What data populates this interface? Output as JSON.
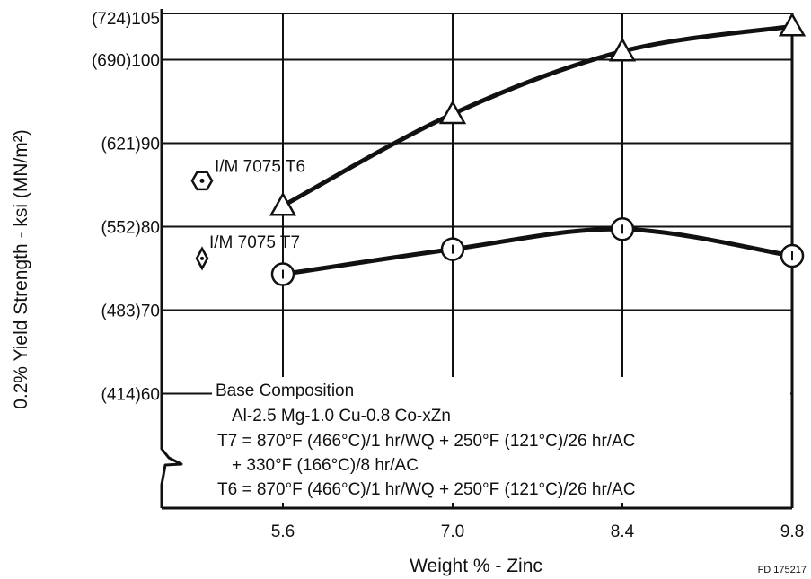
{
  "chart_data": {
    "type": "line",
    "title": "",
    "xlabel": "Weight % - Zinc",
    "ylabel": "0.2% Yield Strength - ksi (MN/m²)",
    "figure_id": "FD 175217",
    "x": [
      5.6,
      7.0,
      8.4,
      9.8
    ],
    "x_tick_labels": [
      "5.6",
      "7.0",
      "8.4",
      "9.8"
    ],
    "y_ticks": [
      60,
      70,
      80,
      90,
      100,
      105
    ],
    "y_tick_labels": [
      "(414)60",
      "(483)70",
      "(552)80",
      "(621)90",
      "(690)100",
      "(724)105"
    ],
    "ylim": [
      57,
      105
    ],
    "xlim": [
      4.6,
      9.8
    ],
    "grid": true,
    "axis_break_on_y": true,
    "series": [
      {
        "marker": "triangle",
        "values": [
          82.5,
          93.5,
          101.0,
          104.0
        ],
        "color": "#111111"
      },
      {
        "marker": "circle-dot",
        "values": [
          74.3,
          77.3,
          79.7,
          76.5
        ],
        "color": "#111111"
      }
    ],
    "reference_points": [
      {
        "label": "I/M 7075 T6",
        "marker": "hexagon-dot",
        "y": 85.5
      },
      {
        "label": "I/M 7075 T7",
        "marker": "diamond-dot",
        "y": 76.2
      }
    ],
    "annotation_lines": [
      "Base Composition",
      "Al-2.5 Mg-1.0 Cu-0.8 Co-xZn",
      "T7 = 870°F (466°C)/1 hr/WQ + 250°F (121°C)/26 hr/AC",
      "+ 330°F (166°C)/8 hr/AC",
      "T6 = 870°F (466°C)/1 hr/WQ + 250°F (121°C)/26 hr/AC"
    ]
  }
}
